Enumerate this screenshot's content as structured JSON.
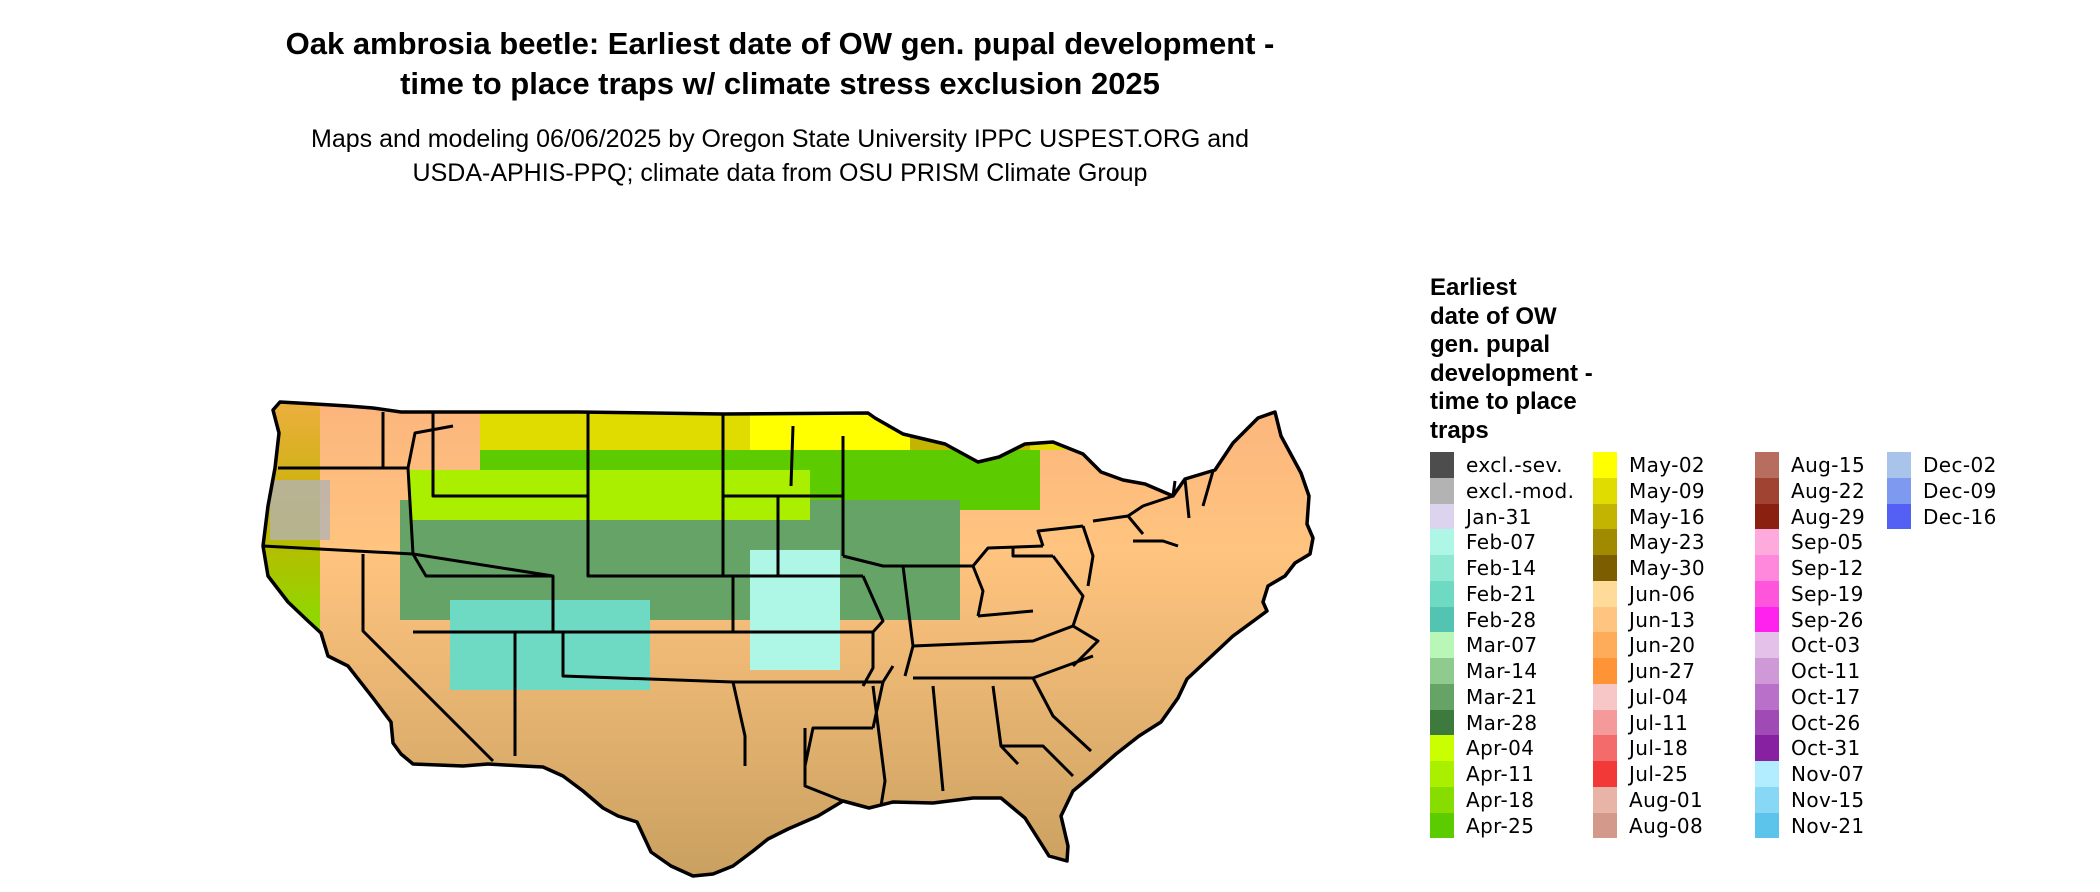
{
  "title": {
    "line1": "Oak ambrosia beetle: Earliest date of OW gen. pupal development -",
    "line2": "time to place traps w/ climate stress exclusion 2025"
  },
  "subtitle": {
    "line1": "Maps and modeling 06/06/2025 by Oregon State University IPPC USPEST.ORG and",
    "line2": "USDA-APHIS-PPQ; climate data from OSU PRISM Climate Group"
  },
  "legend": {
    "title_lines": [
      "Earliest",
      "date of OW",
      "gen. pupal",
      "development -",
      "time to place",
      "traps"
    ],
    "columns": [
      [
        {
          "label": "excl.-sev.",
          "color": "#4d4d4d"
        },
        {
          "label": "excl.-mod.",
          "color": "#b3b3b3"
        },
        {
          "label": "Jan-31",
          "color": "#dcd4ee"
        },
        {
          "label": "Feb-07",
          "color": "#aef7e6"
        },
        {
          "label": "Feb-14",
          "color": "#8fe8d2"
        },
        {
          "label": "Feb-21",
          "color": "#6fdac4"
        },
        {
          "label": "Feb-28",
          "color": "#52c4b1"
        },
        {
          "label": "Mar-07",
          "color": "#b9f7b9"
        },
        {
          "label": "Mar-14",
          "color": "#8fcb8f"
        },
        {
          "label": "Mar-21",
          "color": "#66a366"
        },
        {
          "label": "Mar-28",
          "color": "#3e7a3e"
        },
        {
          "label": "Apr-04",
          "color": "#c9ff00"
        },
        {
          "label": "Apr-11",
          "color": "#aaee00"
        },
        {
          "label": "Apr-18",
          "color": "#88dd00"
        },
        {
          "label": "Apr-25",
          "color": "#5ccc00"
        }
      ],
      [
        {
          "label": "May-02",
          "color": "#ffff00"
        },
        {
          "label": "May-09",
          "color": "#e1dc00"
        },
        {
          "label": "May-16",
          "color": "#c2b400"
        },
        {
          "label": "May-23",
          "color": "#a08b00"
        },
        {
          "label": "May-30",
          "color": "#7c5e00"
        },
        {
          "label": "Jun-06",
          "color": "#ffdb99"
        },
        {
          "label": "Jun-13",
          "color": "#ffc47f"
        },
        {
          "label": "Jun-20",
          "color": "#ffac5a"
        },
        {
          "label": "Jun-27",
          "color": "#ff9436"
        },
        {
          "label": "Jul-04",
          "color": "#f7c7c7"
        },
        {
          "label": "Jul-11",
          "color": "#f59a9a"
        },
        {
          "label": "Jul-18",
          "color": "#f46b6b"
        },
        {
          "label": "Jul-25",
          "color": "#f33838"
        },
        {
          "label": "Aug-01",
          "color": "#e8b4a8"
        },
        {
          "label": "Aug-08",
          "color": "#d39a8c"
        }
      ],
      [
        {
          "label": "Aug-15",
          "color": "#b86e5e"
        },
        {
          "label": "Aug-22",
          "color": "#a04333"
        },
        {
          "label": "Aug-29",
          "color": "#8a2010"
        },
        {
          "label": "Sep-05",
          "color": "#ffaadd"
        },
        {
          "label": "Sep-12",
          "color": "#ff88dd"
        },
        {
          "label": "Sep-19",
          "color": "#ff55dd"
        },
        {
          "label": "Sep-26",
          "color": "#ff22ee"
        },
        {
          "label": "Oct-03",
          "color": "#e3c1e8"
        },
        {
          "label": "Oct-11",
          "color": "#cf99d8"
        },
        {
          "label": "Oct-17",
          "color": "#b870c8"
        },
        {
          "label": "Oct-26",
          "color": "#a04ab6"
        },
        {
          "label": "Oct-31",
          "color": "#8820a2"
        },
        {
          "label": "Nov-07",
          "color": "#b2ecff"
        },
        {
          "label": "Nov-15",
          "color": "#86d8f4"
        },
        {
          "label": "Nov-21",
          "color": "#5cc4ea"
        }
      ],
      [
        {
          "label": "Dec-02",
          "color": "#a8c4ea"
        },
        {
          "label": "Dec-09",
          "color": "#7e9af0"
        },
        {
          "label": "Dec-16",
          "color": "#5460f4"
        }
      ]
    ]
  }
}
